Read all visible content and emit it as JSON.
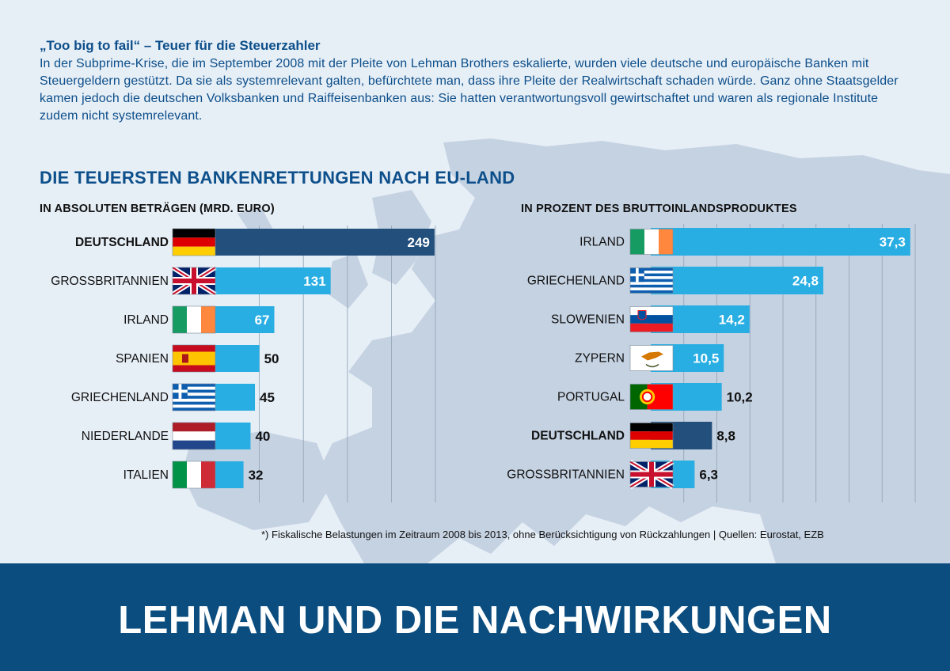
{
  "intro": {
    "title": "„Too big to fail“ – Teuer für die Steuerzahler",
    "text": "In der Subprime-Krise, die im September 2008 mit der Pleite von Lehman Brothers eskalierte, wurden viele deutsche und europäische Banken mit Steuergeldern gestützt. Da sie als systemrelevant galten, befürchtete man, dass ihre Pleite der Realwirtschaft schaden würde. Ganz ohne Staatsgelder kamen jedoch die deutschen Volksbanken und Raiffeisenbanken aus: Sie hatten verantwortungsvoll gewirtschaftet und waren als regionale Institute zudem nicht systemrelevant."
  },
  "section_title": "DIE TEUERSTEN BANKENRETTUNGEN NACH EU-LAND",
  "colors": {
    "highlight": "#234f7d",
    "bar": "#29aee3",
    "text_dark": "#111111",
    "accent_blue": "#0d4f8a",
    "banner": "#0b4d7e"
  },
  "chart_data": [
    {
      "type": "bar",
      "orientation": "horizontal",
      "title": "IN ABSOLUTEN BETRÄGEN (MRD. EURO)",
      "categories": [
        "DEUTSCHLAND",
        "GROSSBRITANNIEN",
        "IRLAND",
        "SPANIEN",
        "GRIECHENLAND",
        "NIEDERLANDE",
        "ITALIEN"
      ],
      "values": [
        249,
        131,
        67,
        50,
        45,
        40,
        32
      ],
      "value_labels": [
        "249",
        "131",
        "67",
        "50",
        "45",
        "40",
        "32"
      ],
      "highlighted": [
        "DEUTSCHLAND"
      ],
      "flags": [
        "germany-flag",
        "uk-flag",
        "ireland-flag",
        "spain-flag",
        "greece-flag",
        "netherlands-flag",
        "italy-flag"
      ],
      "xlim": [
        0,
        250
      ],
      "grid": true
    },
    {
      "type": "bar",
      "orientation": "horizontal",
      "title": "IN PROZENT DES BRUTTOINLANDSPRODUKTES",
      "categories": [
        "IRLAND",
        "GRIECHENLAND",
        "SLOWENIEN",
        "ZYPERN",
        "PORTUGAL",
        "DEUTSCHLAND",
        "GROSSBRITANNIEN"
      ],
      "values": [
        37.3,
        24.8,
        14.2,
        10.5,
        10.2,
        8.8,
        6.3
      ],
      "value_labels": [
        "37,3",
        "24,8",
        "14,2",
        "10,5",
        "10,2",
        "8,8",
        "6,3"
      ],
      "highlighted": [
        "DEUTSCHLAND"
      ],
      "flags": [
        "ireland-flag",
        "greece-flag",
        "slovenia-flag",
        "cyprus-flag",
        "portugal-flag",
        "germany-flag",
        "uk-flag"
      ],
      "xlim": [
        0,
        38
      ],
      "grid": true
    }
  ],
  "footnote": "*) Fiskalische Belastungen im Zeitraum 2008 bis 2013, ohne Berücksichtigung von Rückzahlungen  |  Quellen: Eurostat, EZB",
  "banner": "LEHMAN UND DIE NACHWIRKUNGEN"
}
